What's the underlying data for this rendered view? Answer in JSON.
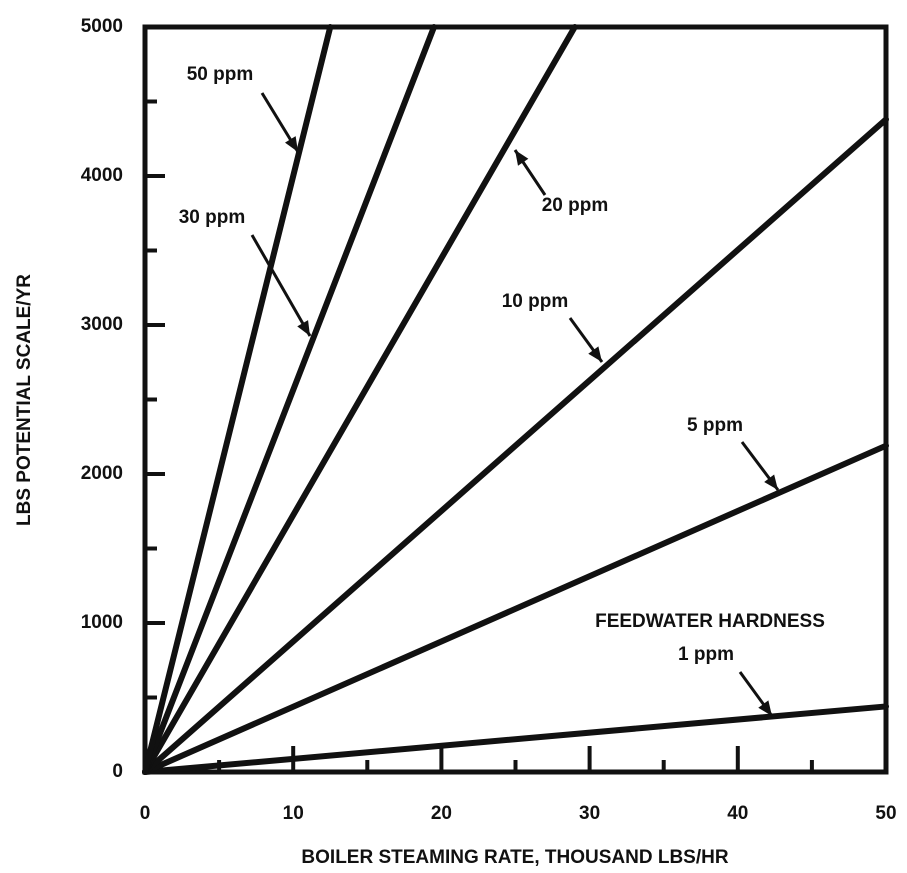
{
  "chart_data": {
    "type": "line",
    "xlabel": "BOILER STEAMING RATE, THOUSAND LBS/HR",
    "ylabel": "LBS POTENTIAL SCALE/YR",
    "annotation": "FEEDWATER HARDNESS",
    "xlim": [
      0,
      50
    ],
    "ylim": [
      0,
      5000
    ],
    "xticks": [
      0,
      10,
      20,
      30,
      40,
      50
    ],
    "yticks": [
      0,
      1000,
      2000,
      3000,
      4000,
      5000
    ],
    "xminor_ticks": [
      5,
      15,
      25,
      35,
      45
    ],
    "yminor_ticks": [
      500,
      1500,
      2500,
      3500,
      4500
    ],
    "color": "#111111",
    "series": [
      {
        "name": "1 ppm",
        "x": [
          0,
          50
        ],
        "values": [
          0,
          440
        ]
      },
      {
        "name": "5 ppm",
        "x": [
          0,
          50
        ],
        "values": [
          0,
          2190
        ]
      },
      {
        "name": "10 ppm",
        "x": [
          0,
          50
        ],
        "values": [
          0,
          4380
        ]
      },
      {
        "name": "20 ppm",
        "x": [
          0,
          29
        ],
        "values": [
          0,
          5000
        ]
      },
      {
        "name": "30 ppm",
        "x": [
          0,
          19.5
        ],
        "values": [
          0,
          5000
        ]
      },
      {
        "name": "50 ppm",
        "x": [
          0,
          12.5
        ],
        "values": [
          0,
          5000
        ]
      }
    ]
  }
}
